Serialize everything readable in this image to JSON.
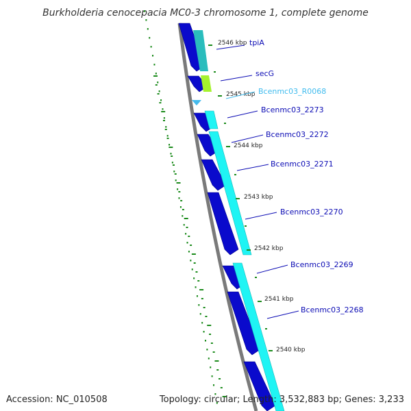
{
  "title": "Burkholderia cenocepacia MC0-3 chromosome 1, complete genome",
  "footer": {
    "accession": "Accession: NC_010508",
    "summary": "Topology: circular; Length: 3,532,883 bp; Genes: 3,233"
  },
  "colors": {
    "cds_forward": "#0a0acc",
    "cds_reverse": "#1ff4f4",
    "gene_teal": "#2abdbd",
    "gene_lime": "#a6f22e",
    "rna": "#44bbee",
    "backbone": "#7a7a7a",
    "tick": "#1a8a1a",
    "label_blue": "#0a0ab4",
    "label_cyan": "#3fbbee"
  },
  "genes": [
    {
      "name": "tpiA",
      "color": "#0a0ab4"
    },
    {
      "name": "secG",
      "color": "#0a0ab4"
    },
    {
      "name": "Bcenmc03_R0068",
      "color": "#3fbbee"
    },
    {
      "name": "Bcenmc03_2273",
      "color": "#0a0ab4"
    },
    {
      "name": "Bcenmc03_2272",
      "color": "#0a0ab4"
    },
    {
      "name": "Bcenmc03_2271",
      "color": "#0a0ab4"
    },
    {
      "name": "Bcenmc03_2270",
      "color": "#0a0ab4"
    },
    {
      "name": "Bcenmc03_2269",
      "color": "#0a0ab4"
    },
    {
      "name": "Bcenmc03_2268",
      "color": "#0a0ab4"
    }
  ],
  "kbp_ticks": [
    "2546 kbp",
    "2545 kbp",
    "2544 kbp",
    "2543 kbp",
    "2542 kbp",
    "2541 kbp",
    "2540 kbp"
  ]
}
